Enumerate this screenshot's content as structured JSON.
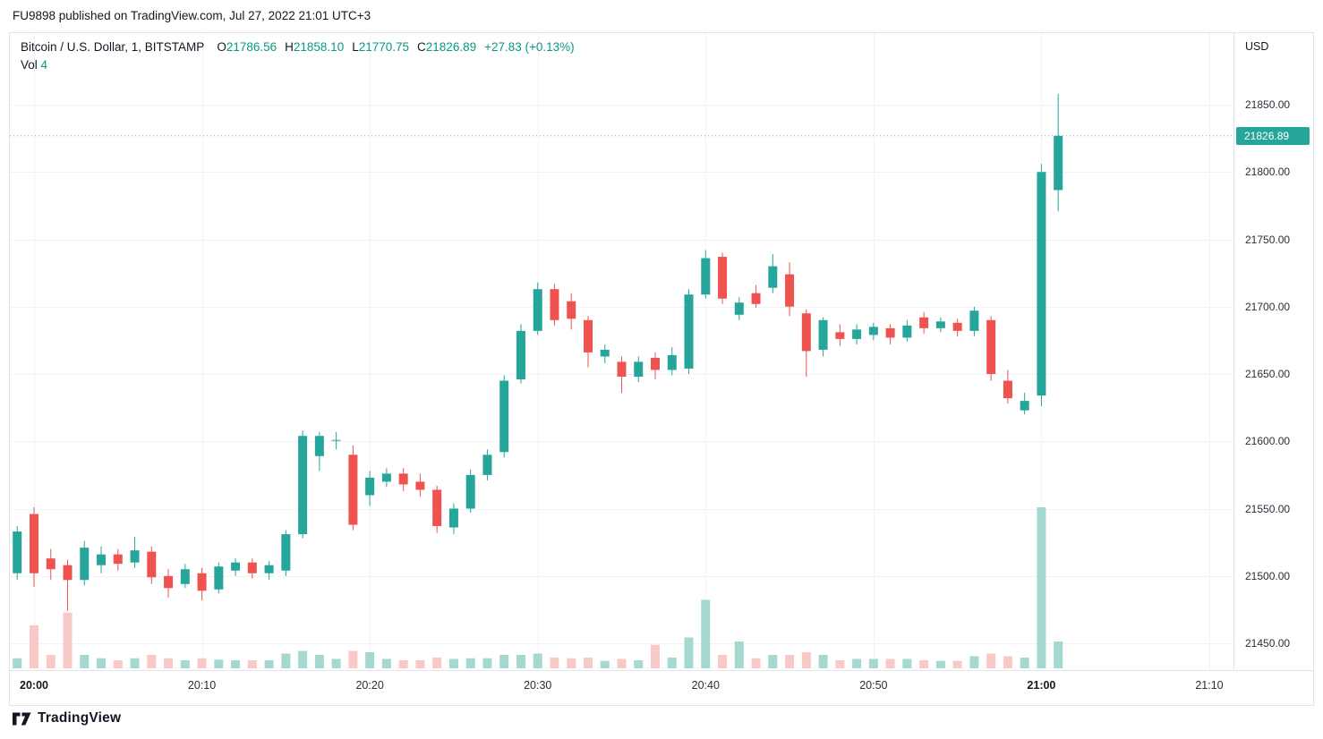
{
  "header": {
    "attribution": "FU9898 published on TradingView.com, Jul 27, 2022 21:01 UTC+3"
  },
  "legend": {
    "symbol": "Bitcoin / U.S. Dollar, 1, BITSTAMP",
    "ohlc": [
      {
        "label": "O",
        "value": "21786.56"
      },
      {
        "label": "H",
        "value": "21858.10"
      },
      {
        "label": "L",
        "value": "21770.75"
      },
      {
        "label": "C",
        "value": "21826.89"
      }
    ],
    "change": "+27.83 (+0.13%)",
    "vol_label": "Vol",
    "vol_value": "4"
  },
  "price_axis": {
    "currency": "USD",
    "ticks": [
      "21850.00",
      "21800.00",
      "21750.00",
      "21700.00",
      "21650.00",
      "21600.00",
      "21550.00",
      "21500.00",
      "21450.00"
    ],
    "last_price": "21826.89"
  },
  "time_axis": {
    "ticks": [
      {
        "label": "20:00",
        "minute": 0,
        "bold": true
      },
      {
        "label": "20:10",
        "minute": 10,
        "bold": false
      },
      {
        "label": "20:20",
        "minute": 20,
        "bold": false
      },
      {
        "label": "20:30",
        "minute": 30,
        "bold": false
      },
      {
        "label": "20:40",
        "minute": 40,
        "bold": false
      },
      {
        "label": "20:50",
        "minute": 50,
        "bold": false
      },
      {
        "label": "21:00",
        "minute": 60,
        "bold": true
      },
      {
        "label": "21:10",
        "minute": 70,
        "bold": false
      }
    ]
  },
  "footer": {
    "brand": "TradingView"
  },
  "colors": {
    "candle_up": "#26a69a",
    "candle_down": "#ef5350",
    "volume_up": "#a5d8d0",
    "volume_down": "#f8c9c6",
    "grid": "#f0f3fa",
    "border": "#e0e3eb",
    "value_green": "#089981",
    "badge_bg": "#26a69a",
    "badge_text": "#ffffff",
    "price_line": "#9b9fa8",
    "text_primary": "#131722"
  },
  "chart_data": {
    "type": "candlestick",
    "title": "Bitcoin / U.S. Dollar",
    "exchange": "BITSTAMP",
    "interval": "1",
    "currency": "USD",
    "legend_position": "top-left",
    "grid": true,
    "y_axis": {
      "min": 21430,
      "max": 21870,
      "tick_step": 50
    },
    "x_range": [
      "19:59",
      "21:10"
    ],
    "last_bar": {
      "open": 21786.56,
      "high": 21858.1,
      "low": 21770.75,
      "close": 21826.89,
      "change": "+27.83",
      "change_pct": "+0.13%",
      "volume": 4
    },
    "columns": [
      "time",
      "open",
      "high",
      "low",
      "close",
      "volume"
    ],
    "candles": [
      [
        "19:59",
        21502,
        21537,
        21497,
        21533,
        1.5
      ],
      [
        "20:00",
        21546,
        21551,
        21492,
        21502,
        6.4
      ],
      [
        "20:01",
        21513,
        21520,
        21497,
        21505,
        2.0
      ],
      [
        "20:02",
        21508,
        21512,
        21474,
        21497,
        8.3
      ],
      [
        "20:03",
        21497,
        21526,
        21493,
        21521,
        2.0
      ],
      [
        "20:04",
        21508,
        21522,
        21502,
        21516,
        1.5
      ],
      [
        "20:05",
        21516,
        21520,
        21504,
        21509,
        1.2
      ],
      [
        "20:06",
        21510,
        21529,
        21506,
        21519,
        1.5
      ],
      [
        "20:07",
        21518,
        21522,
        21494,
        21499,
        2.0
      ],
      [
        "20:08",
        21500,
        21505,
        21484,
        21491,
        1.5
      ],
      [
        "20:09",
        21494,
        21509,
        21491,
        21505,
        1.2
      ],
      [
        "20:10",
        21502,
        21506,
        21482,
        21489,
        1.5
      ],
      [
        "20:11",
        21490,
        21510,
        21487,
        21507,
        1.3
      ],
      [
        "20:12",
        21504,
        21513,
        21500,
        21510,
        1.2
      ],
      [
        "20:13",
        21510,
        21513,
        21498,
        21502,
        1.2
      ],
      [
        "20:14",
        21502,
        21511,
        21497,
        21508,
        1.2
      ],
      [
        "20:15",
        21504,
        21534,
        21500,
        21531,
        2.2
      ],
      [
        "20:16",
        21531,
        21608,
        21528,
        21604,
        2.6
      ],
      [
        "20:17",
        21589,
        21607,
        21578,
        21604,
        2.0
      ],
      [
        "20:18",
        21601,
        21607,
        21594,
        21601,
        1.4
      ],
      [
        "20:19",
        21590,
        21597,
        21534,
        21538,
        2.6
      ],
      [
        "20:20",
        21560,
        21578,
        21552,
        21573,
        2.4
      ],
      [
        "20:21",
        21570,
        21580,
        21566,
        21576,
        1.4
      ],
      [
        "20:22",
        21576,
        21580,
        21563,
        21568,
        1.2
      ],
      [
        "20:23",
        21570,
        21576,
        21559,
        21564,
        1.2
      ],
      [
        "20:24",
        21564,
        21567,
        21532,
        21537,
        1.6
      ],
      [
        "20:25",
        21536,
        21554,
        21531,
        21550,
        1.4
      ],
      [
        "20:26",
        21550,
        21579,
        21547,
        21575,
        1.5
      ],
      [
        "20:27",
        21575,
        21594,
        21571,
        21590,
        1.5
      ],
      [
        "20:28",
        21592,
        21649,
        21588,
        21645,
        2.0
      ],
      [
        "20:29",
        21646,
        21687,
        21643,
        21682,
        2.0
      ],
      [
        "20:30",
        21682,
        21718,
        21679,
        21713,
        2.2
      ],
      [
        "20:31",
        21713,
        21717,
        21686,
        21690,
        1.6
      ],
      [
        "20:32",
        21704,
        21710,
        21683,
        21691,
        1.5
      ],
      [
        "20:33",
        21690,
        21693,
        21655,
        21666,
        1.6
      ],
      [
        "20:34",
        21663,
        21672,
        21658,
        21668,
        1.1
      ],
      [
        "20:35",
        21659,
        21663,
        21636,
        21648,
        1.4
      ],
      [
        "20:36",
        21648,
        21663,
        21644,
        21659,
        1.2
      ],
      [
        "20:37",
        21662,
        21666,
        21646,
        21653,
        3.5
      ],
      [
        "20:38",
        21653,
        21670,
        21649,
        21664,
        1.6
      ],
      [
        "20:39",
        21654,
        21713,
        21650,
        21709,
        4.6
      ],
      [
        "20:40",
        21709,
        21742,
        21706,
        21736,
        10.2
      ],
      [
        "20:41",
        21737,
        21740,
        21702,
        21706,
        2.0
      ],
      [
        "20:42",
        21694,
        21707,
        21690,
        21703,
        4.0
      ],
      [
        "20:43",
        21710,
        21716,
        21699,
        21702,
        1.5
      ],
      [
        "20:44",
        21714,
        21739,
        21710,
        21730,
        2.0
      ],
      [
        "20:45",
        21724,
        21733,
        21693,
        21700,
        2.0
      ],
      [
        "20:46",
        21695,
        21698,
        21648,
        21667,
        2.4
      ],
      [
        "20:47",
        21668,
        21692,
        21663,
        21690,
        2.0
      ],
      [
        "20:48",
        21681,
        21687,
        21671,
        21676,
        1.2
      ],
      [
        "20:49",
        21676,
        21687,
        21672,
        21683,
        1.4
      ],
      [
        "20:50",
        21679,
        21688,
        21675,
        21685,
        1.4
      ],
      [
        "20:51",
        21684,
        21687,
        21672,
        21677,
        1.4
      ],
      [
        "20:52",
        21677,
        21690,
        21674,
        21686,
        1.4
      ],
      [
        "20:53",
        21692,
        21696,
        21680,
        21684,
        1.2
      ],
      [
        "20:54",
        21684,
        21692,
        21681,
        21689,
        1.1
      ],
      [
        "20:55",
        21688,
        21691,
        21678,
        21682,
        1.1
      ],
      [
        "20:56",
        21682,
        21700,
        21678,
        21697,
        1.8
      ],
      [
        "20:57",
        21690,
        21693,
        21645,
        21650,
        2.2
      ],
      [
        "20:58",
        21645,
        21653,
        21628,
        21632,
        1.8
      ],
      [
        "20:59",
        21623,
        21636,
        21620,
        21630,
        1.6
      ],
      [
        "21:00",
        21634,
        21806,
        21626,
        21800,
        24.0
      ],
      [
        "21:01",
        21786.56,
        21858.1,
        21770.75,
        21826.89,
        4.0
      ]
    ]
  }
}
